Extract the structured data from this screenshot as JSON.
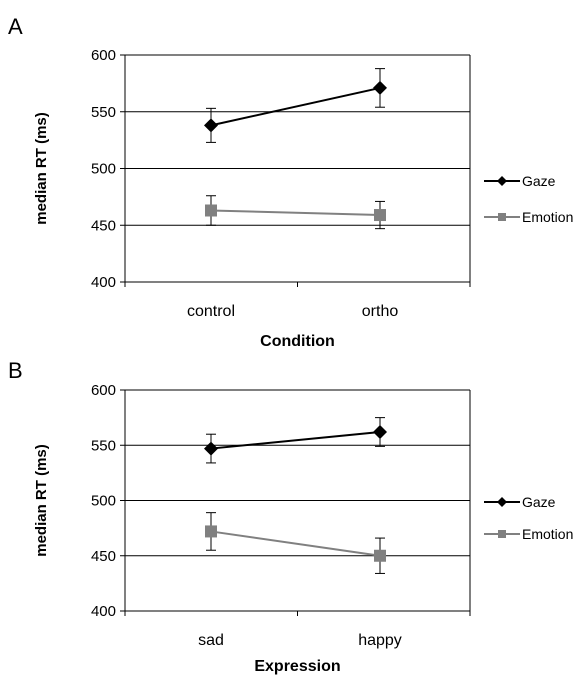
{
  "chart_data": [
    {
      "type": "line",
      "panel_label": "A",
      "xlabel": "Condition",
      "ylabel": "median RT (ms)",
      "categories": [
        "control",
        "ortho"
      ],
      "ylim": [
        400,
        600
      ],
      "yticks": [
        400,
        450,
        500,
        550,
        600
      ],
      "grid": "horizontal",
      "legend_position": "right",
      "series": [
        {
          "name": "Gaze",
          "values": [
            538,
            571
          ],
          "errors": [
            15,
            17
          ],
          "color": "#000000",
          "marker": "diamond"
        },
        {
          "name": "Emotion",
          "values": [
            463,
            459
          ],
          "errors": [
            13,
            12
          ],
          "color": "#808080",
          "marker": "square"
        }
      ]
    },
    {
      "type": "line",
      "panel_label": "B",
      "xlabel": "Expression",
      "ylabel": "median RT (ms)",
      "categories": [
        "sad",
        "happy"
      ],
      "ylim": [
        400,
        600
      ],
      "yticks": [
        400,
        450,
        500,
        550,
        600
      ],
      "grid": "horizontal",
      "legend_position": "right",
      "series": [
        {
          "name": "Gaze",
          "values": [
            547,
            562
          ],
          "errors": [
            13,
            13
          ],
          "color": "#000000",
          "marker": "diamond"
        },
        {
          "name": "Emotion",
          "values": [
            472,
            450
          ],
          "errors": [
            17,
            16
          ],
          "color": "#808080",
          "marker": "square"
        }
      ]
    }
  ]
}
